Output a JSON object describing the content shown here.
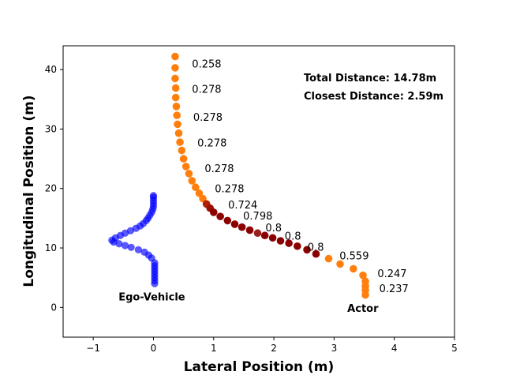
{
  "chart_data": {
    "type": "scatter",
    "xlabel": "Lateral Position (m)",
    "ylabel": "Longitudinal Position (m)",
    "xlim": [
      -1.5,
      5
    ],
    "ylim": [
      -5,
      44
    ],
    "xticks": [
      -1,
      0,
      1,
      2,
      3,
      4,
      5
    ],
    "yticks": [
      0,
      10,
      20,
      30,
      40
    ],
    "grid": false,
    "summary": {
      "total_distance": "Total Distance: 14.78m",
      "closest_distance": "Closest Distance: 2.59m"
    },
    "labels": [
      {
        "text": "Ego-Vehicle",
        "x": -0.58,
        "y": 1.7
      },
      {
        "text": "Actor",
        "x": 3.22,
        "y": -0.2
      }
    ],
    "annotations": [
      {
        "text": "0.258",
        "x": 0.64,
        "y": 40.9
      },
      {
        "text": "0.278",
        "x": 0.64,
        "y": 36.6
      },
      {
        "text": "0.278",
        "x": 0.66,
        "y": 31.9
      },
      {
        "text": "0.278",
        "x": 0.73,
        "y": 27.6
      },
      {
        "text": "0.278",
        "x": 0.85,
        "y": 23.3
      },
      {
        "text": "0.278",
        "x": 1.02,
        "y": 19.9
      },
      {
        "text": "0.724",
        "x": 1.24,
        "y": 17.2
      },
      {
        "text": "0.798",
        "x": 1.49,
        "y": 15.3
      },
      {
        "text": "0.8",
        "x": 1.86,
        "y": 13.3
      },
      {
        "text": "0.8",
        "x": 2.18,
        "y": 11.9
      },
      {
        "text": "0.8",
        "x": 2.56,
        "y": 10.1
      },
      {
        "text": "0.559",
        "x": 3.09,
        "y": 8.6
      },
      {
        "text": "0.247",
        "x": 3.72,
        "y": 5.6
      },
      {
        "text": "0.237",
        "x": 3.75,
        "y": 3.1
      }
    ],
    "series": [
      {
        "role": "ego",
        "color": "#0000ff",
        "points": [
          [
            0.02,
            4.0
          ],
          [
            0.02,
            4.5
          ],
          [
            0.02,
            5.0
          ],
          [
            0.02,
            5.5
          ],
          [
            0.02,
            6.0
          ],
          [
            0.02,
            6.5
          ],
          [
            0.02,
            7.0
          ],
          [
            0.02,
            7.5
          ],
          [
            -0.03,
            8.3
          ],
          [
            -0.08,
            8.8
          ],
          [
            -0.15,
            9.3
          ],
          [
            -0.25,
            9.7
          ],
          [
            -0.37,
            10.1
          ],
          [
            -0.47,
            10.4
          ],
          [
            -0.57,
            10.7
          ],
          [
            -0.66,
            11.0
          ],
          [
            -0.69,
            11.3
          ],
          [
            -0.63,
            11.7
          ],
          [
            -0.55,
            12.1
          ],
          [
            -0.47,
            12.5
          ],
          [
            -0.38,
            12.9
          ],
          [
            -0.29,
            13.3
          ],
          [
            -0.22,
            13.7
          ],
          [
            -0.17,
            14.1
          ],
          [
            -0.12,
            14.6
          ],
          [
            -0.09,
            15.0
          ],
          [
            -0.06,
            15.5
          ],
          [
            -0.03,
            16.0
          ],
          [
            -0.01,
            16.5
          ],
          [
            0.0,
            17.0
          ],
          [
            0.0,
            17.5
          ],
          [
            0.0,
            18.0
          ],
          [
            0.0,
            18.5
          ],
          [
            0.0,
            18.8
          ]
        ]
      },
      {
        "role": "actor",
        "points": [
          [
            0.36,
            42.2,
            "#ff7f0e"
          ],
          [
            0.36,
            40.3,
            "#ff7f0e"
          ],
          [
            0.36,
            38.5,
            "#ff7f0e"
          ],
          [
            0.37,
            36.9,
            "#ff7f0e"
          ],
          [
            0.37,
            35.3,
            "#ff7f0e"
          ],
          [
            0.38,
            33.8,
            "#ff7f0e"
          ],
          [
            0.39,
            32.3,
            "#ff7f0e"
          ],
          [
            0.4,
            30.8,
            "#ff7f0e"
          ],
          [
            0.42,
            29.3,
            "#ff7f0e"
          ],
          [
            0.44,
            27.8,
            "#ff7f0e"
          ],
          [
            0.47,
            26.4,
            "#ff7f0e"
          ],
          [
            0.5,
            25.0,
            "#ff7f0e"
          ],
          [
            0.54,
            23.7,
            "#ff7f0e"
          ],
          [
            0.59,
            22.5,
            "#ff7f0e"
          ],
          [
            0.64,
            21.3,
            "#ff7f0e"
          ],
          [
            0.7,
            20.2,
            "#ff7f0e"
          ],
          [
            0.76,
            19.2,
            "#ff7f0e"
          ],
          [
            0.82,
            18.3,
            "#ff7f0e"
          ],
          [
            0.88,
            17.4,
            "#b22000"
          ],
          [
            0.94,
            16.7,
            "#9a1005"
          ],
          [
            1.0,
            16.0,
            "#8b0000"
          ],
          [
            1.11,
            15.3,
            "#8b0000"
          ],
          [
            1.23,
            14.6,
            "#8b0000"
          ],
          [
            1.35,
            14.0,
            "#8b0000"
          ],
          [
            1.47,
            13.5,
            "#8b0000"
          ],
          [
            1.6,
            13.0,
            "#8b0000"
          ],
          [
            1.73,
            12.5,
            "#9a1f1f"
          ],
          [
            1.85,
            12.1,
            "#8b0000"
          ],
          [
            1.98,
            11.7,
            "#8b0000"
          ],
          [
            2.11,
            11.2,
            "#8b0000"
          ],
          [
            2.25,
            10.8,
            "#8b0000"
          ],
          [
            2.39,
            10.3,
            "#8b0000"
          ],
          [
            2.55,
            9.7,
            "#8b0000"
          ],
          [
            2.7,
            9.0,
            "#8b0000"
          ],
          [
            2.91,
            8.2,
            "#ff7f0e"
          ],
          [
            3.1,
            7.3,
            "#ff7f0e"
          ],
          [
            3.32,
            6.5,
            "#ff7f0e"
          ],
          [
            3.48,
            5.4,
            "#ff7f0e"
          ],
          [
            3.52,
            4.4,
            "#ff7f0e"
          ],
          [
            3.52,
            3.6,
            "#ff7f0e"
          ],
          [
            3.52,
            2.9,
            "#ff7f0e"
          ],
          [
            3.52,
            2.1,
            "#ff7f0e"
          ]
        ]
      }
    ]
  }
}
